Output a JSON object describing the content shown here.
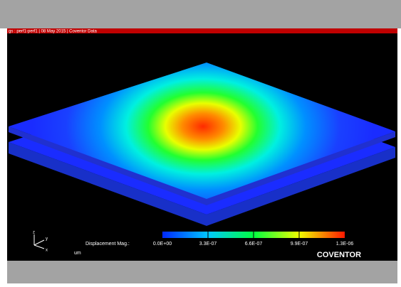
{
  "header": {
    "title": "gs : perf1-perf1 | 08 May 2015 | Coventor Data"
  },
  "triad": {
    "z": "z",
    "y": "y",
    "x": "x"
  },
  "legend": {
    "label": "Displacement Mag.:",
    "ticks": [
      "0.0E+00",
      "3.3E-07",
      "6.6E-07",
      "9.9E-07",
      "1.3E-06"
    ],
    "unit": "um"
  },
  "brand": "COVENTOR"
}
